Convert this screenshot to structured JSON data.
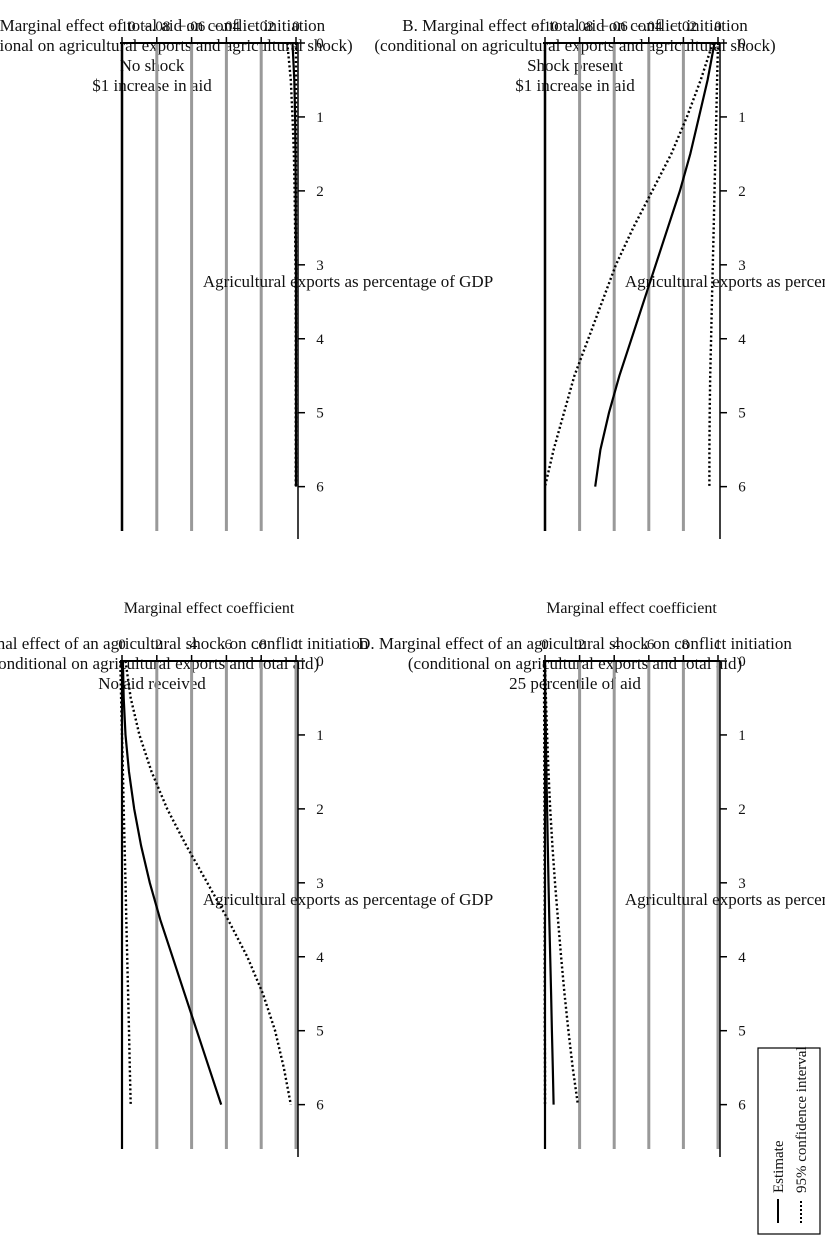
{
  "chart_data": [
    {
      "type": "line",
      "panel": "A",
      "title": "A. Marginal effect of total aid on conflict initiation",
      "subtitle": "(conditional on agricultural exports and agricultural shock)",
      "annotation1": "No shock",
      "annotation2": "$1 increase in aid",
      "xlabel": "Agricultural exports as percentage of GDP",
      "ylabel": "Marginal effect coefficient",
      "xlim": [
        0,
        6.6
      ],
      "ylim": [
        -0.1,
        0
      ],
      "xticks": [
        "0",
        "1",
        "2",
        "3",
        "4",
        "5",
        "6"
      ],
      "yticks": [
        "0",
        "−.02",
        "−.04",
        "−.06",
        "−.08",
        "−.10"
      ],
      "ytick_values": [
        0,
        -0.02,
        -0.04,
        -0.06,
        -0.08,
        -0.1
      ],
      "grid": true,
      "x": [
        0,
        0.5,
        1,
        1.5,
        2,
        2.5,
        3,
        3.5,
        4,
        4.5,
        5,
        5.5,
        6
      ],
      "series": [
        {
          "role": "estimate",
          "style": "solid",
          "values": [
            -0.002,
            -0.001,
            -0.0005,
            -0.0003,
            -0.0002,
            -0.0001,
            0,
            0,
            0,
            0,
            0,
            0,
            0
          ]
        },
        {
          "role": "upper",
          "style": "dotted",
          "values": [
            0,
            0,
            0,
            0,
            0,
            0,
            0,
            0,
            0,
            0,
            0,
            0,
            0
          ]
        },
        {
          "role": "lower",
          "style": "dotted",
          "values": [
            -0.005,
            -0.003,
            -0.002,
            -0.0012,
            -0.0008,
            -0.0005,
            -0.0003,
            -0.0002,
            -0.0001,
            -0.0001,
            -0.0001,
            -0.0001,
            -0.0001
          ]
        }
      ]
    },
    {
      "type": "line",
      "panel": "B",
      "title": "B. Marginal effect of total aid on conflict initiation",
      "subtitle": "(conditional on agricultural exports and agricultural shock)",
      "annotation1": "Shock present",
      "annotation2": "$1 increase in aid",
      "xlabel": "Agricultural exports as percentage of GDP",
      "ylabel": "Marginal effect coefficient",
      "xlim": [
        0,
        6.6
      ],
      "ylim": [
        -0.1,
        0
      ],
      "xticks": [
        "0",
        "1",
        "2",
        "3",
        "4",
        "5",
        "6"
      ],
      "yticks": [
        "0",
        "−.02",
        "−.04",
        "−.06",
        "−.08",
        "−.10"
      ],
      "ytick_values": [
        0,
        -0.02,
        -0.04,
        -0.06,
        -0.08,
        -0.1
      ],
      "grid": true,
      "x": [
        0,
        0.5,
        1,
        1.5,
        2,
        2.5,
        3,
        3.5,
        4,
        4.5,
        5,
        5.5,
        6
      ],
      "series": [
        {
          "role": "estimate",
          "style": "solid",
          "values": [
            -0.002,
            -0.006,
            -0.011,
            -0.016,
            -0.022,
            -0.029,
            -0.036,
            -0.043,
            -0.05,
            -0.057,
            -0.063,
            -0.068,
            -0.071
          ]
        },
        {
          "role": "upper",
          "style": "dotted",
          "values": [
            0,
            -0.0005,
            -0.001,
            -0.0015,
            -0.002,
            -0.0025,
            -0.003,
            -0.0035,
            -0.004,
            -0.0045,
            -0.0048,
            -0.005,
            -0.005
          ]
        },
        {
          "role": "lower",
          "style": "dotted",
          "values": [
            -0.003,
            -0.01,
            -0.018,
            -0.027,
            -0.038,
            -0.049,
            -0.059,
            -0.067,
            -0.075,
            -0.083,
            -0.089,
            -0.095,
            -0.1
          ]
        }
      ]
    },
    {
      "type": "line",
      "panel": "C",
      "title": "C. Marginal effect of an agricultural shock on conflict initiation",
      "subtitle": "(conditional on agricultural exports and total aid)",
      "annotation1": "No aid received",
      "annotation2": "",
      "xlabel": "Agricultural exports as percentage of GDP",
      "ylabel": "Marginal effect coefficient",
      "xlim": [
        0,
        6.6
      ],
      "ylim": [
        0,
        1
      ],
      "xticks": [
        "0",
        "1",
        "2",
        "3",
        "4",
        "5",
        "6"
      ],
      "yticks": [
        "0",
        ".2",
        ".4",
        ".6",
        ".8",
        "1"
      ],
      "ytick_values": [
        0,
        0.2,
        0.4,
        0.6,
        0.8,
        1
      ],
      "grid": true,
      "x": [
        0,
        0.5,
        1,
        1.5,
        2,
        2.5,
        3,
        3.5,
        4,
        4.5,
        5,
        5.5,
        6
      ],
      "series": [
        {
          "role": "estimate",
          "style": "solid",
          "values": [
            0.005,
            0.01,
            0.02,
            0.04,
            0.07,
            0.11,
            0.16,
            0.22,
            0.29,
            0.36,
            0.43,
            0.5,
            0.57
          ]
        },
        {
          "role": "upper",
          "style": "dotted",
          "values": [
            0.02,
            0.05,
            0.1,
            0.17,
            0.26,
            0.37,
            0.49,
            0.61,
            0.72,
            0.81,
            0.88,
            0.93,
            0.97
          ]
        },
        {
          "role": "lower",
          "style": "dotted",
          "values": [
            -0.01,
            -0.005,
            0,
            0.005,
            0.01,
            0.015,
            0.02,
            0.025,
            0.03,
            0.035,
            0.04,
            0.045,
            0.05
          ]
        }
      ]
    },
    {
      "type": "line",
      "panel": "D",
      "title": "D. Marginal effect of an agricultural shock on conflict initiation",
      "subtitle": "(conditional on agricultural exports and total aid)",
      "annotation1": "25 percentile of aid",
      "annotation2": "",
      "xlabel": "Agricultural exports as percentage of GDP",
      "ylabel": "Marginal effect coefficient",
      "xlim": [
        0,
        6.6
      ],
      "ylim": [
        0,
        1
      ],
      "xticks": [
        "0",
        "1",
        "2",
        "3",
        "4",
        "5",
        "6"
      ],
      "yticks": [
        "0",
        ".2",
        ".4",
        ".6",
        ".8",
        "1"
      ],
      "ytick_values": [
        0,
        0.2,
        0.4,
        0.6,
        0.8,
        1
      ],
      "grid": true,
      "x": [
        0,
        0.5,
        1,
        1.5,
        2,
        2.5,
        3,
        3.5,
        4,
        4.5,
        5,
        5.5,
        6
      ],
      "series": [
        {
          "role": "estimate",
          "style": "solid",
          "values": [
            0,
            0.002,
            0.005,
            0.008,
            0.012,
            0.016,
            0.02,
            0.025,
            0.03,
            0.035,
            0.04,
            0.045,
            0.05
          ]
        },
        {
          "role": "upper",
          "style": "dotted",
          "values": [
            0,
            0.005,
            0.012,
            0.02,
            0.03,
            0.043,
            0.058,
            0.075,
            0.093,
            0.113,
            0.135,
            0.16,
            0.19
          ]
        },
        {
          "role": "lower",
          "style": "dotted",
          "values": [
            -0.005,
            -0.005,
            -0.004,
            -0.004,
            -0.003,
            -0.003,
            -0.002,
            -0.002,
            -0.002,
            -0.001,
            -0.001,
            0,
            0
          ]
        }
      ]
    }
  ],
  "legend": {
    "estimate_label": "Estimate",
    "ci_label": "95% confidence interval"
  }
}
